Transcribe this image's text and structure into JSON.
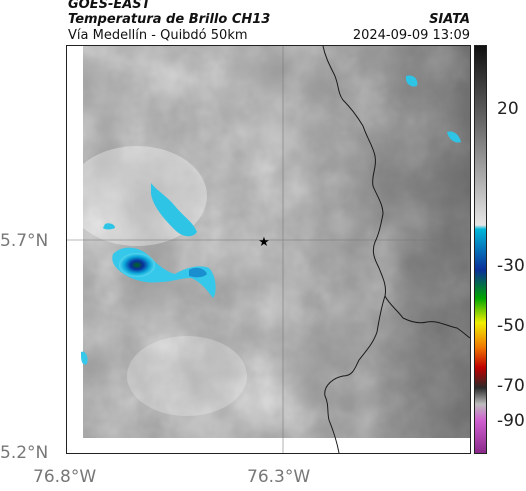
{
  "header": {
    "title_line1": "GOES-EAST",
    "title_line2": "Temperatura de Brillo CH13",
    "subtitle": "Vía Medellín - Quibdó 50km",
    "agency": "SIATA",
    "datetime": "2024-09-09 13:09"
  },
  "map": {
    "lat_labels": [
      "5.7°N",
      "5.2°N"
    ],
    "lon_labels": [
      "76.8°W",
      "76.3°W"
    ],
    "marker": "star-marker"
  },
  "colorbar": {
    "ticks": [
      "20",
      "-30",
      "-50",
      "-70",
      "-90"
    ],
    "colors": [
      "#111111",
      "#888888",
      "#e6e6e6",
      "#00b7d9",
      "#0a2f9a",
      "#00a600",
      "#f0f000",
      "#f07800",
      "#c00000",
      "#2a2a2a",
      "#d060d0"
    ]
  }
}
